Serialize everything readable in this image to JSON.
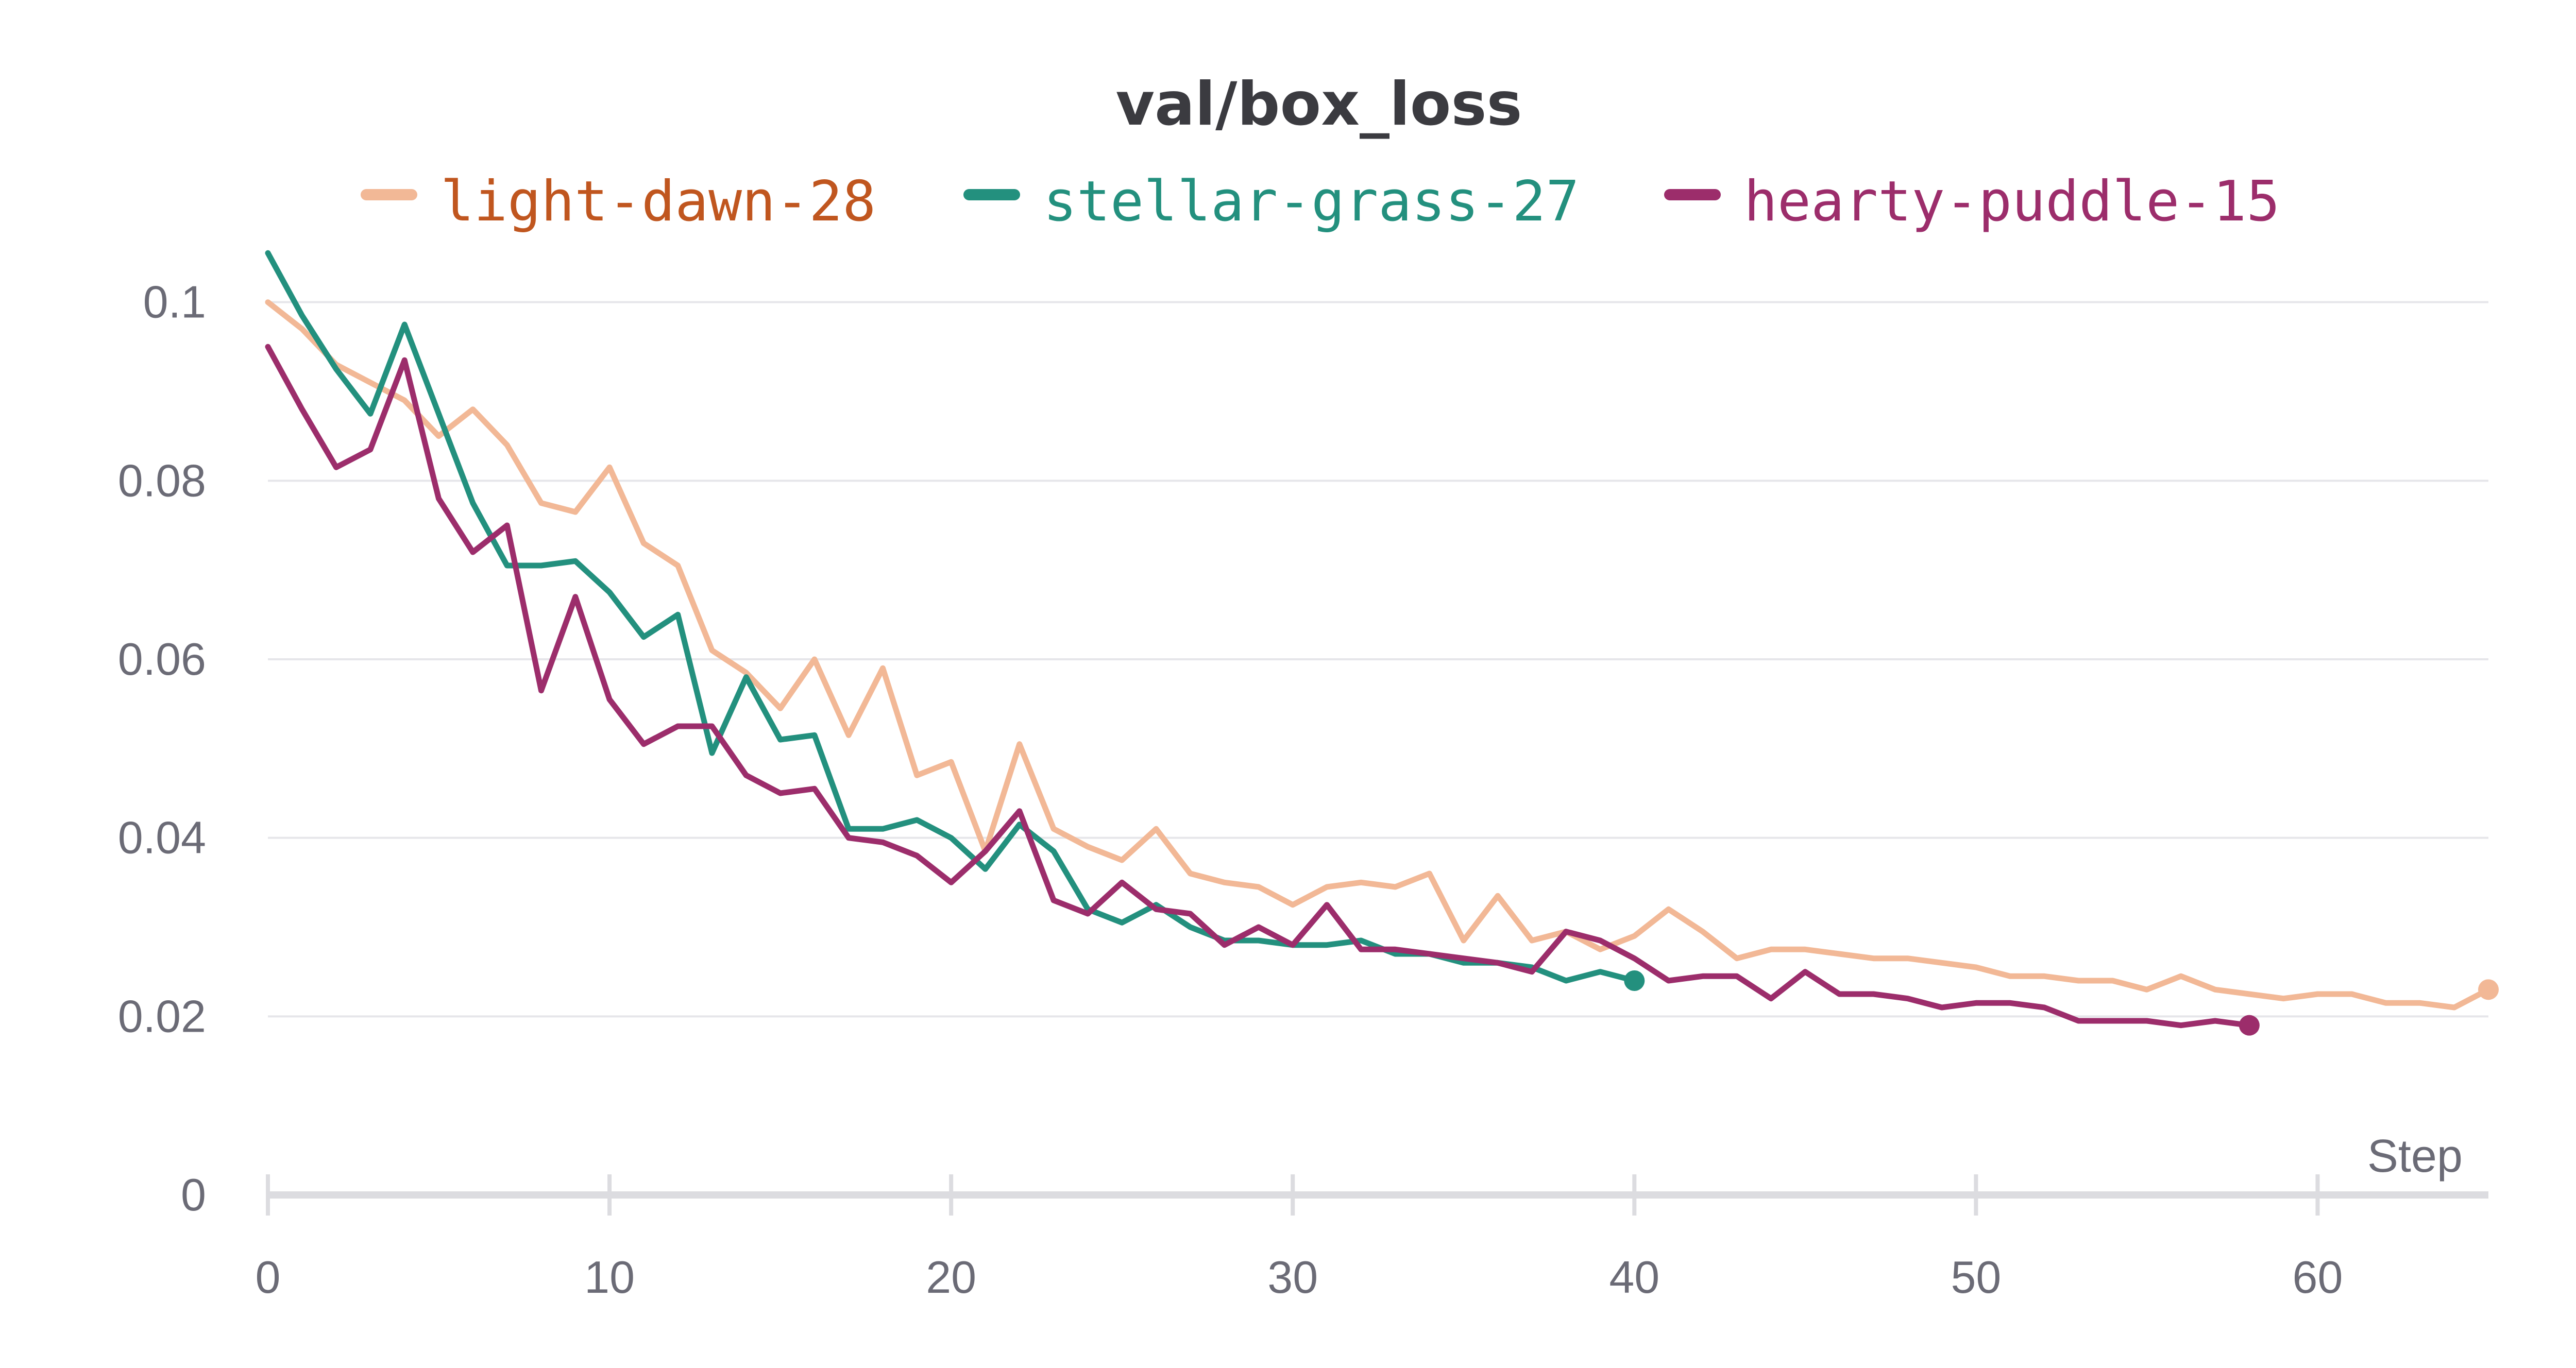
{
  "chart_data": {
    "type": "line",
    "title": "val/box_loss",
    "xlabel": "Step",
    "ylabel": "",
    "xlim": [
      0,
      65
    ],
    "ylim": [
      0,
      0.105
    ],
    "x_ticks": [
      "0",
      "10",
      "20",
      "30",
      "40",
      "50",
      "60"
    ],
    "y_ticks": [
      "0",
      "0.02",
      "0.04",
      "0.06",
      "0.08",
      "0.1"
    ],
    "grid": true,
    "legend_position": "top",
    "series": [
      {
        "name": "light-dawn-28",
        "color": "#f2b896",
        "label_color": "#c0561f",
        "x": [
          0,
          1,
          2,
          3,
          4,
          5,
          6,
          7,
          8,
          9,
          10,
          11,
          12,
          13,
          14,
          15,
          16,
          17,
          18,
          19,
          20,
          21,
          22,
          23,
          24,
          25,
          26,
          27,
          28,
          29,
          30,
          31,
          32,
          33,
          34,
          35,
          36,
          37,
          38,
          39,
          40,
          41,
          42,
          43,
          44,
          45,
          46,
          47,
          48,
          49,
          50,
          51,
          52,
          53,
          54,
          55,
          56,
          57,
          58,
          59,
          60,
          61,
          62,
          63,
          64,
          65
        ],
        "values": [
          0.1,
          0.097,
          0.093,
          0.091,
          0.089,
          0.085,
          0.088,
          0.084,
          0.0775,
          0.0765,
          0.0815,
          0.073,
          0.0705,
          0.061,
          0.0585,
          0.0545,
          0.06,
          0.0515,
          0.059,
          0.047,
          0.0485,
          0.0385,
          0.0505,
          0.041,
          0.039,
          0.0375,
          0.041,
          0.036,
          0.035,
          0.0345,
          0.0325,
          0.0345,
          0.035,
          0.0345,
          0.036,
          0.0285,
          0.0335,
          0.0285,
          0.0295,
          0.0275,
          0.029,
          0.032,
          0.0295,
          0.0265,
          0.0275,
          0.0275,
          0.027,
          0.0265,
          0.0265,
          0.026,
          0.0255,
          0.0245,
          0.0245,
          0.024,
          0.024,
          0.023,
          0.0245,
          0.023,
          0.0225,
          0.022,
          0.0225,
          0.0225,
          0.0215,
          0.0215,
          0.021,
          0.023
        ]
      },
      {
        "name": "stellar-grass-27",
        "color": "#23907e",
        "label_color": "#23907e",
        "x": [
          0,
          1,
          2,
          3,
          4,
          5,
          6,
          7,
          8,
          9,
          10,
          11,
          12,
          13,
          14,
          15,
          16,
          17,
          18,
          19,
          20,
          21,
          22,
          23,
          24,
          25,
          26,
          27,
          28,
          29,
          30,
          31,
          32,
          33,
          34,
          35,
          36,
          37,
          38,
          39,
          40
        ],
        "values": [
          0.1055,
          0.0985,
          0.0925,
          0.0875,
          0.0975,
          0.0875,
          0.0775,
          0.0705,
          0.0705,
          0.071,
          0.0675,
          0.0625,
          0.065,
          0.0495,
          0.058,
          0.051,
          0.0515,
          0.041,
          0.041,
          0.042,
          0.04,
          0.0365,
          0.0415,
          0.0385,
          0.032,
          0.0305,
          0.0325,
          0.03,
          0.0285,
          0.0285,
          0.028,
          0.028,
          0.0285,
          0.027,
          0.027,
          0.026,
          0.026,
          0.0255,
          0.024,
          0.025,
          0.024
        ]
      },
      {
        "name": "hearty-puddle-15",
        "color": "#9c2d6b",
        "label_color": "#9c2d6b",
        "x": [
          0,
          1,
          2,
          3,
          4,
          5,
          6,
          7,
          8,
          9,
          10,
          11,
          12,
          13,
          14,
          15,
          16,
          17,
          18,
          19,
          20,
          21,
          22,
          23,
          24,
          25,
          26,
          27,
          28,
          29,
          30,
          31,
          32,
          33,
          34,
          35,
          36,
          37,
          38,
          39,
          40,
          41,
          42,
          43,
          44,
          45,
          46,
          47,
          48,
          49,
          50,
          51,
          52,
          53,
          54,
          55,
          56,
          57,
          58
        ],
        "values": [
          0.095,
          0.088,
          0.0815,
          0.0835,
          0.0935,
          0.078,
          0.072,
          0.075,
          0.0565,
          0.067,
          0.0555,
          0.0505,
          0.0525,
          0.0525,
          0.047,
          0.045,
          0.0455,
          0.04,
          0.0395,
          0.038,
          0.035,
          0.0385,
          0.043,
          0.033,
          0.0315,
          0.035,
          0.032,
          0.0315,
          0.028,
          0.03,
          0.028,
          0.0325,
          0.0275,
          0.0275,
          0.027,
          0.0265,
          0.026,
          0.025,
          0.0295,
          0.0285,
          0.0265,
          0.024,
          0.0245,
          0.0245,
          0.022,
          0.025,
          0.0225,
          0.0225,
          0.022,
          0.021,
          0.0215,
          0.0215,
          0.021,
          0.0195,
          0.0195,
          0.0195,
          0.019,
          0.0195,
          0.019
        ]
      }
    ]
  }
}
